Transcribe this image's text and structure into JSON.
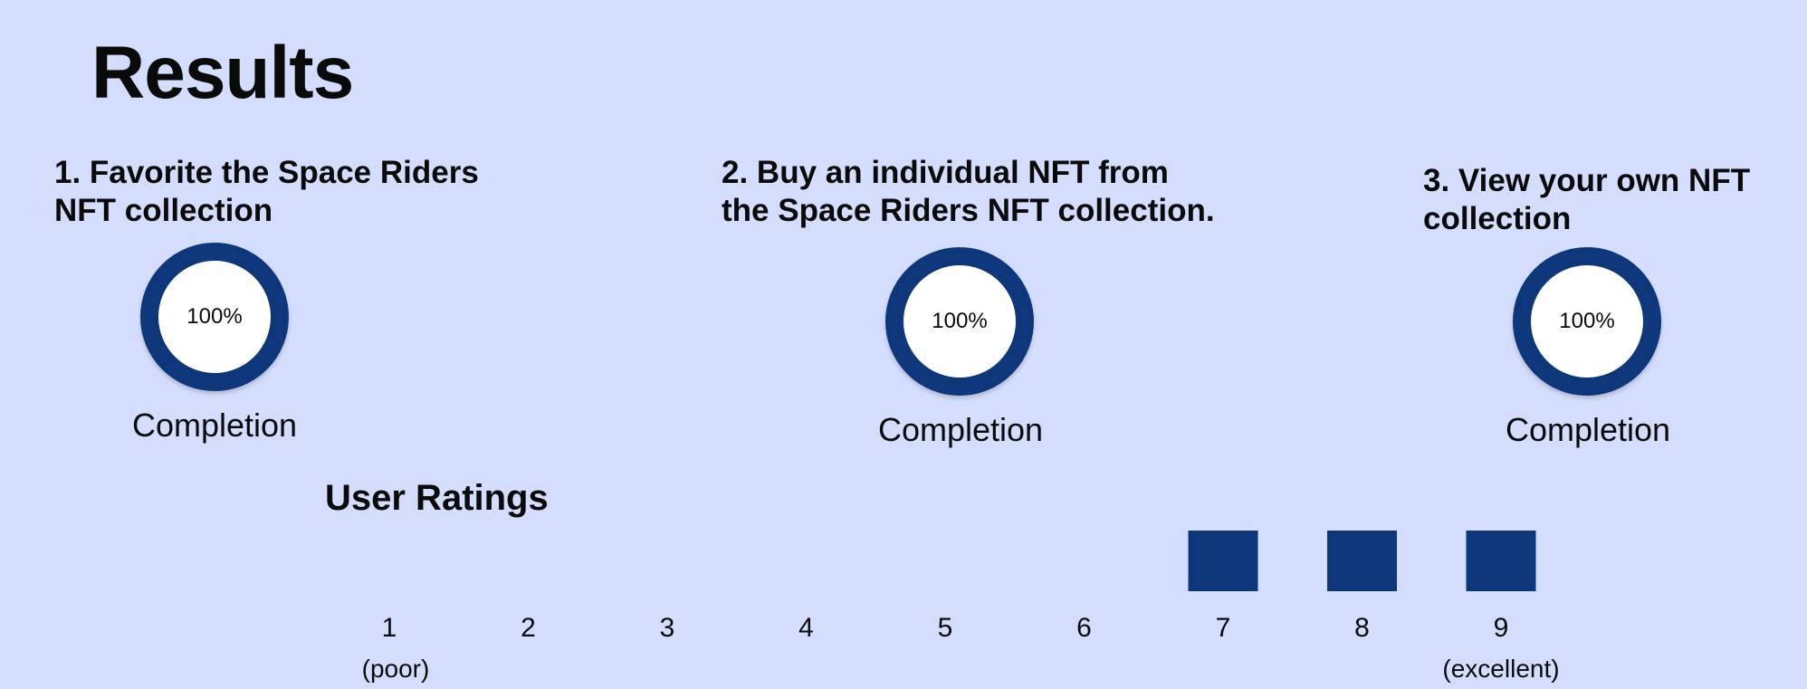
{
  "page": {
    "title": "Results",
    "ratings_title": "User Ratings"
  },
  "colors": {
    "background": "#d5ddfd",
    "accent": "#0d377a",
    "ring_inner": "#ffffff",
    "text": "#0a0a0a"
  },
  "tasks": [
    {
      "title_lines": [
        "1. Favorite the Space Riders",
        "NFT collection"
      ],
      "completion": "100%",
      "completion_fraction": 1.0,
      "caption": "Completion"
    },
    {
      "title_lines": [
        "2. Buy an individual NFT from",
        "the Space Riders NFT collection."
      ],
      "completion": "100%",
      "completion_fraction": 1.0,
      "caption": "Completion"
    },
    {
      "title_lines": [
        "3. View your own NFT",
        "collection"
      ],
      "completion": "100%",
      "completion_fraction": 1.0,
      "caption": "Completion"
    }
  ],
  "chart_data": {
    "type": "bar",
    "title": "User Ratings",
    "categories": [
      "1",
      "2",
      "3",
      "4",
      "5",
      "6",
      "7",
      "8",
      "9"
    ],
    "values": [
      0,
      0,
      0,
      0,
      0,
      0,
      1,
      1,
      1
    ],
    "scale_labels": {
      "low": "(poor)",
      "high": "(excellent)"
    },
    "grid": false,
    "legend": "none"
  }
}
